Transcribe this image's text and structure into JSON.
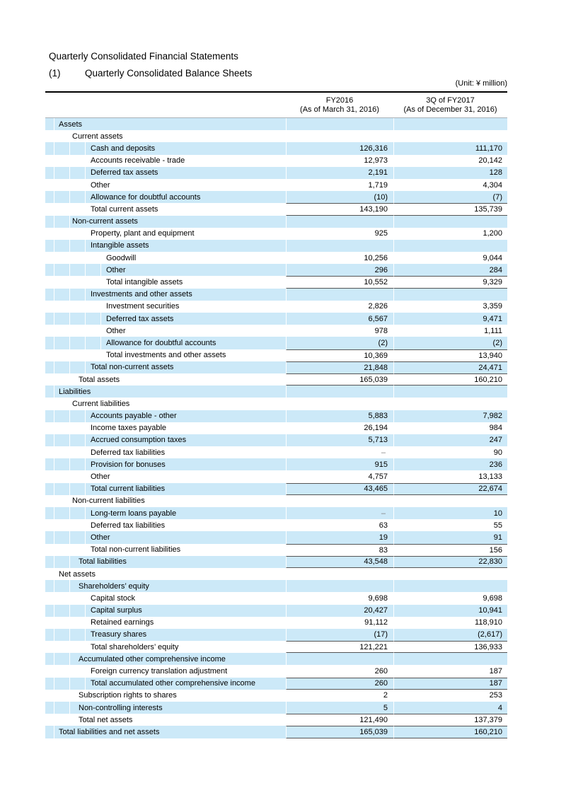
{
  "page": {
    "title": "Quarterly Consolidated Financial Statements",
    "subtitle_index": "(1)",
    "subtitle": "Quarterly Consolidated Balance Sheets",
    "unit_note": "(Unit: ¥ million)"
  },
  "colors": {
    "row_shade": "#cce9f8",
    "rule": "#555555",
    "header_rule": "#aab2b8",
    "top_rule": "#000000",
    "dash_value": "#7f7f7f"
  },
  "table": {
    "columns": [
      {
        "line1": "FY2016",
        "line2": "(As of March 31, 2016)"
      },
      {
        "line1": "3Q of FY2017",
        "line2": "(As of December 31, 2016)"
      }
    ],
    "rows": [
      {
        "label": "Assets",
        "level": "1",
        "shaded": true,
        "v1": "",
        "v2": "",
        "rule_top": false,
        "rule_bottom": false
      },
      {
        "label": "Current assets",
        "level": "2",
        "shaded": false,
        "v1": "",
        "v2": "",
        "rule_top": false,
        "rule_bottom": false
      },
      {
        "label": "Cash and deposits",
        "level": "3",
        "shaded": true,
        "v1": "126,316",
        "v2": "111,170",
        "rule_top": false,
        "rule_bottom": false
      },
      {
        "label": "Accounts receivable - trade",
        "level": "3",
        "shaded": false,
        "v1": "12,973",
        "v2": "20,142",
        "rule_top": false,
        "rule_bottom": false
      },
      {
        "label": "Deferred tax assets",
        "level": "3",
        "shaded": true,
        "v1": "2,191",
        "v2": "128",
        "rule_top": false,
        "rule_bottom": false
      },
      {
        "label": "Other",
        "level": "3",
        "shaded": false,
        "v1": "1,719",
        "v2": "4,304",
        "rule_top": false,
        "rule_bottom": false
      },
      {
        "label": "Allowance for doubtful accounts",
        "level": "3",
        "shaded": true,
        "v1": "(10)",
        "v2": "(7)",
        "rule_top": false,
        "rule_bottom": false
      },
      {
        "label": "Total current assets",
        "level": "3",
        "shaded": false,
        "v1": "143,190",
        "v2": "135,739",
        "rule_top": true,
        "rule_bottom": true
      },
      {
        "label": "Non-current assets",
        "level": "2",
        "shaded": true,
        "v1": "",
        "v2": "",
        "rule_top": false,
        "rule_bottom": false
      },
      {
        "label": "Property, plant and equipment",
        "level": "3",
        "shaded": false,
        "v1": "925",
        "v2": "1,200",
        "rule_top": false,
        "rule_bottom": false
      },
      {
        "label": "Intangible assets",
        "level": "3",
        "shaded": true,
        "v1": "",
        "v2": "",
        "rule_top": false,
        "rule_bottom": false
      },
      {
        "label": "Goodwill",
        "level": "4",
        "shaded": false,
        "v1": "10,256",
        "v2": "9,044",
        "rule_top": false,
        "rule_bottom": false
      },
      {
        "label": "Other",
        "level": "4",
        "shaded": true,
        "v1": "296",
        "v2": "284",
        "rule_top": false,
        "rule_bottom": false
      },
      {
        "label": "Total intangible assets",
        "level": "4",
        "shaded": false,
        "v1": "10,552",
        "v2": "9,329",
        "rule_top": true,
        "rule_bottom": true
      },
      {
        "label": "Investments and other assets",
        "level": "3",
        "shaded": true,
        "v1": "",
        "v2": "",
        "rule_top": false,
        "rule_bottom": false
      },
      {
        "label": "Investment securities",
        "level": "4",
        "shaded": false,
        "v1": "2,826",
        "v2": "3,359",
        "rule_top": false,
        "rule_bottom": false
      },
      {
        "label": "Deferred tax assets",
        "level": "4",
        "shaded": true,
        "v1": "6,567",
        "v2": "9,471",
        "rule_top": false,
        "rule_bottom": false
      },
      {
        "label": "Other",
        "level": "4",
        "shaded": false,
        "v1": "978",
        "v2": "1,111",
        "rule_top": false,
        "rule_bottom": false
      },
      {
        "label": "Allowance for doubtful accounts",
        "level": "4",
        "shaded": true,
        "v1": "(2)",
        "v2": "(2)",
        "rule_top": false,
        "rule_bottom": false
      },
      {
        "label": "Total investments and other assets",
        "level": "4",
        "shaded": false,
        "v1": "10,369",
        "v2": "13,940",
        "rule_top": true,
        "rule_bottom": false
      },
      {
        "label": "Total non-current assets",
        "level": "3",
        "shaded": true,
        "v1": "21,848",
        "v2": "24,471",
        "rule_top": true,
        "rule_bottom": false
      },
      {
        "label": "Total assets",
        "level": "2t",
        "shaded": false,
        "v1": "165,039",
        "v2": "160,210",
        "rule_top": true,
        "rule_bottom": true
      },
      {
        "label": "Liabilities",
        "level": "1",
        "shaded": true,
        "v1": "",
        "v2": "",
        "rule_top": false,
        "rule_bottom": false
      },
      {
        "label": "Current liabilities",
        "level": "2",
        "shaded": false,
        "v1": "",
        "v2": "",
        "rule_top": false,
        "rule_bottom": false
      },
      {
        "label": "Accounts payable - other",
        "level": "3",
        "shaded": true,
        "v1": "5,883",
        "v2": "7,982",
        "rule_top": false,
        "rule_bottom": false
      },
      {
        "label": "Income taxes payable",
        "level": "3",
        "shaded": false,
        "v1": "26,194",
        "v2": "984",
        "rule_top": false,
        "rule_bottom": false
      },
      {
        "label": "Accrued consumption taxes",
        "level": "3",
        "shaded": true,
        "v1": "5,713",
        "v2": "247",
        "rule_top": false,
        "rule_bottom": false
      },
      {
        "label": "Deferred tax liabilities",
        "level": "3",
        "shaded": false,
        "v1": "–",
        "v2": "90",
        "rule_top": false,
        "rule_bottom": false
      },
      {
        "label": "Provision for bonuses",
        "level": "3",
        "shaded": true,
        "v1": "915",
        "v2": "236",
        "rule_top": false,
        "rule_bottom": false
      },
      {
        "label": "Other",
        "level": "3",
        "shaded": false,
        "v1": "4,757",
        "v2": "13,133",
        "rule_top": false,
        "rule_bottom": false
      },
      {
        "label": "Total current liabilities",
        "level": "3",
        "shaded": true,
        "v1": "43,465",
        "v2": "22,674",
        "rule_top": true,
        "rule_bottom": true
      },
      {
        "label": "Non-current liabilities",
        "level": "2",
        "shaded": false,
        "v1": "",
        "v2": "",
        "rule_top": false,
        "rule_bottom": false
      },
      {
        "label": "Long-term loans payable",
        "level": "3",
        "shaded": true,
        "v1": "–",
        "v2": "10",
        "rule_top": false,
        "rule_bottom": false
      },
      {
        "label": "Deferred tax liabilities",
        "level": "3",
        "shaded": false,
        "v1": "63",
        "v2": "55",
        "rule_top": false,
        "rule_bottom": false
      },
      {
        "label": "Other",
        "level": "3",
        "shaded": true,
        "v1": "19",
        "v2": "91",
        "rule_top": false,
        "rule_bottom": false
      },
      {
        "label": "Total non-current liabilities",
        "level": "3",
        "shaded": false,
        "v1": "83",
        "v2": "156",
        "rule_top": true,
        "rule_bottom": false
      },
      {
        "label": "Total liabilities",
        "level": "2t",
        "shaded": true,
        "v1": "43,548",
        "v2": "22,830",
        "rule_top": true,
        "rule_bottom": true
      },
      {
        "label": "Net assets",
        "level": "1",
        "shaded": false,
        "v1": "",
        "v2": "",
        "rule_top": false,
        "rule_bottom": false
      },
      {
        "label": "Shareholders’ equity",
        "level": "2t",
        "shaded": true,
        "v1": "",
        "v2": "",
        "rule_top": false,
        "rule_bottom": false
      },
      {
        "label": "Capital stock",
        "level": "3",
        "shaded": false,
        "v1": "9,698",
        "v2": "9,698",
        "rule_top": false,
        "rule_bottom": false
      },
      {
        "label": "Capital surplus",
        "level": "3",
        "shaded": true,
        "v1": "20,427",
        "v2": "10,941",
        "rule_top": false,
        "rule_bottom": false
      },
      {
        "label": "Retained earnings",
        "level": "3",
        "shaded": false,
        "v1": "91,112",
        "v2": "118,910",
        "rule_top": false,
        "rule_bottom": false
      },
      {
        "label": "Treasury shares",
        "level": "3",
        "shaded": true,
        "v1": "(17)",
        "v2": "(2,617)",
        "rule_top": false,
        "rule_bottom": false
      },
      {
        "label": "Total shareholders’ equity",
        "level": "3",
        "shaded": false,
        "v1": "121,221",
        "v2": "136,933",
        "rule_top": true,
        "rule_bottom": true
      },
      {
        "label": "Accumulated other comprehensive income",
        "level": "2t",
        "shaded": true,
        "v1": "",
        "v2": "",
        "rule_top": false,
        "rule_bottom": false
      },
      {
        "label": "Foreign currency translation adjustment",
        "level": "3",
        "shaded": false,
        "v1": "260",
        "v2": "187",
        "rule_top": false,
        "rule_bottom": false
      },
      {
        "label": "Total accumulated other comprehensive income",
        "level": "3",
        "shaded": true,
        "v1": "260",
        "v2": "187",
        "rule_top": true,
        "rule_bottom": true
      },
      {
        "label": "Subscription rights to shares",
        "level": "2t",
        "shaded": false,
        "v1": "2",
        "v2": "253",
        "rule_top": false,
        "rule_bottom": false
      },
      {
        "label": "Non-controlling interests",
        "level": "2t",
        "shaded": true,
        "v1": "5",
        "v2": "4",
        "rule_top": false,
        "rule_bottom": false
      },
      {
        "label": "Total net assets",
        "level": "2t",
        "shaded": false,
        "v1": "121,490",
        "v2": "137,379",
        "rule_top": true,
        "rule_bottom": false
      },
      {
        "label": "Total liabilities and net assets",
        "level": "1",
        "shaded": true,
        "v1": "165,039",
        "v2": "160,210",
        "rule_top": true,
        "rule_bottom": true
      }
    ]
  }
}
